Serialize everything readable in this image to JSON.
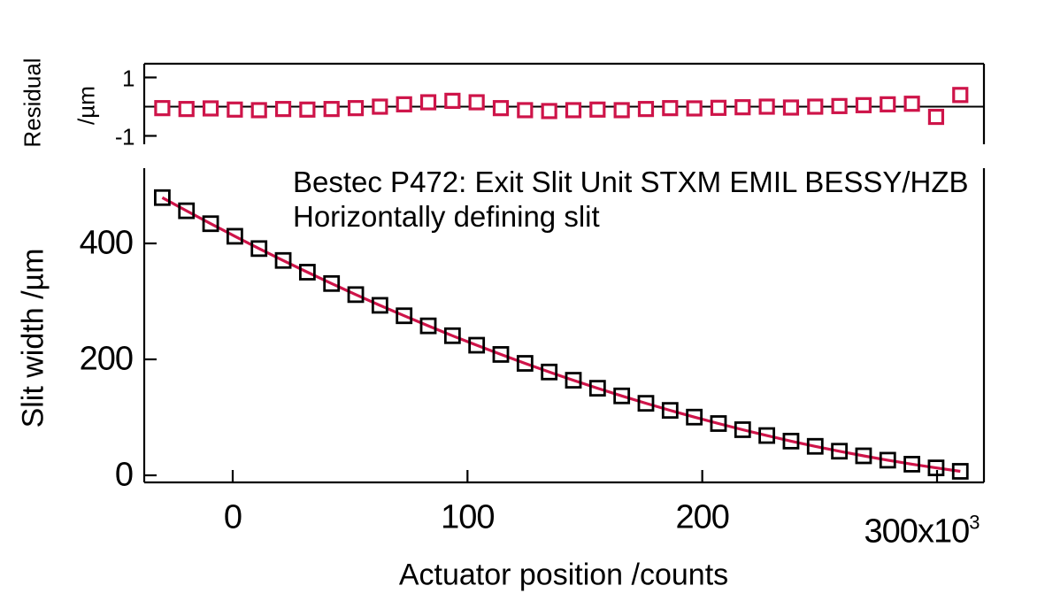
{
  "figure": {
    "title_line1": "Bestec P472: Exit Slit Unit STXM EMIL BESSY/HZB",
    "title_line2": "Horizontally defining slit",
    "background_color": "#ffffff",
    "axis_color": "#000000",
    "accent_color": "#CE1449"
  },
  "chart_data": [
    {
      "type": "scatter",
      "panel": "residual",
      "ylabel_line1": "Residual",
      "ylabel_line2": "/µm",
      "y_ticks": [
        1,
        -1
      ],
      "y_tick_labels": [
        "1",
        "-1"
      ],
      "ylim": [
        -1.3,
        1.47
      ],
      "xlim": [
        -37700,
        320000
      ],
      "marker": "open-square",
      "marker_color": "#CE1449",
      "marker_fill": "#ffffff",
      "zero_line": true,
      "grid": false,
      "x": [
        -30000,
        -19700,
        -9400,
        900,
        11200,
        21500,
        31800,
        42100,
        52400,
        62700,
        73000,
        83300,
        93600,
        103900,
        114200,
        124500,
        134800,
        145100,
        155400,
        165700,
        176000,
        186300,
        196600,
        206900,
        217200,
        227500,
        237800,
        248100,
        258400,
        268700,
        279000,
        289300,
        299600,
        309900
      ],
      "y": [
        -0.05,
        -0.08,
        -0.06,
        -0.1,
        -0.12,
        -0.08,
        -0.1,
        -0.08,
        -0.05,
        0.0,
        0.08,
        0.15,
        0.2,
        0.15,
        -0.05,
        -0.12,
        -0.15,
        -0.12,
        -0.1,
        -0.12,
        -0.08,
        -0.05,
        -0.06,
        -0.04,
        -0.02,
        0.0,
        -0.03,
        0.0,
        0.02,
        0.05,
        0.08,
        0.1,
        -0.35,
        0.4
      ]
    },
    {
      "type": "scatter",
      "panel": "main",
      "xlabel": "Actuator position /counts",
      "ylabel": "Slit width /µm",
      "x_ticks": [
        0,
        100000,
        200000,
        300000
      ],
      "x_tick_labels": [
        "0",
        "100",
        "200",
        "300x10³"
      ],
      "y_ticks": [
        0,
        200,
        400
      ],
      "y_tick_labels": [
        "0",
        "200",
        "400"
      ],
      "ylim": [
        -10,
        530
      ],
      "xlim": [
        -37700,
        320000
      ],
      "marker": "open-square",
      "marker_color": "#000000",
      "fit_line": true,
      "fit_line_color": "#CE1449",
      "grid": false,
      "x": [
        -30000,
        -19700,
        -9400,
        900,
        11200,
        21500,
        31800,
        42100,
        52400,
        62700,
        73000,
        83300,
        93600,
        103900,
        114200,
        124500,
        134800,
        145100,
        155400,
        165700,
        176000,
        186300,
        196600,
        206900,
        217200,
        227500,
        237800,
        248100,
        258400,
        268700,
        279000,
        289300,
        299600,
        309900
      ],
      "y": [
        479.0,
        456.3,
        434.0,
        412.3,
        391.1,
        370.6,
        350.4,
        330.8,
        311.7,
        293.2,
        275.2,
        257.8,
        240.8,
        224.4,
        208.5,
        193.1,
        178.2,
        164.0,
        150.2,
        137.0,
        124.2,
        112.0,
        100.4,
        89.3,
        78.7,
        68.6,
        59.0,
        50.0,
        41.6,
        33.6,
        26.1,
        19.2,
        12.8,
        6.9
      ]
    }
  ]
}
